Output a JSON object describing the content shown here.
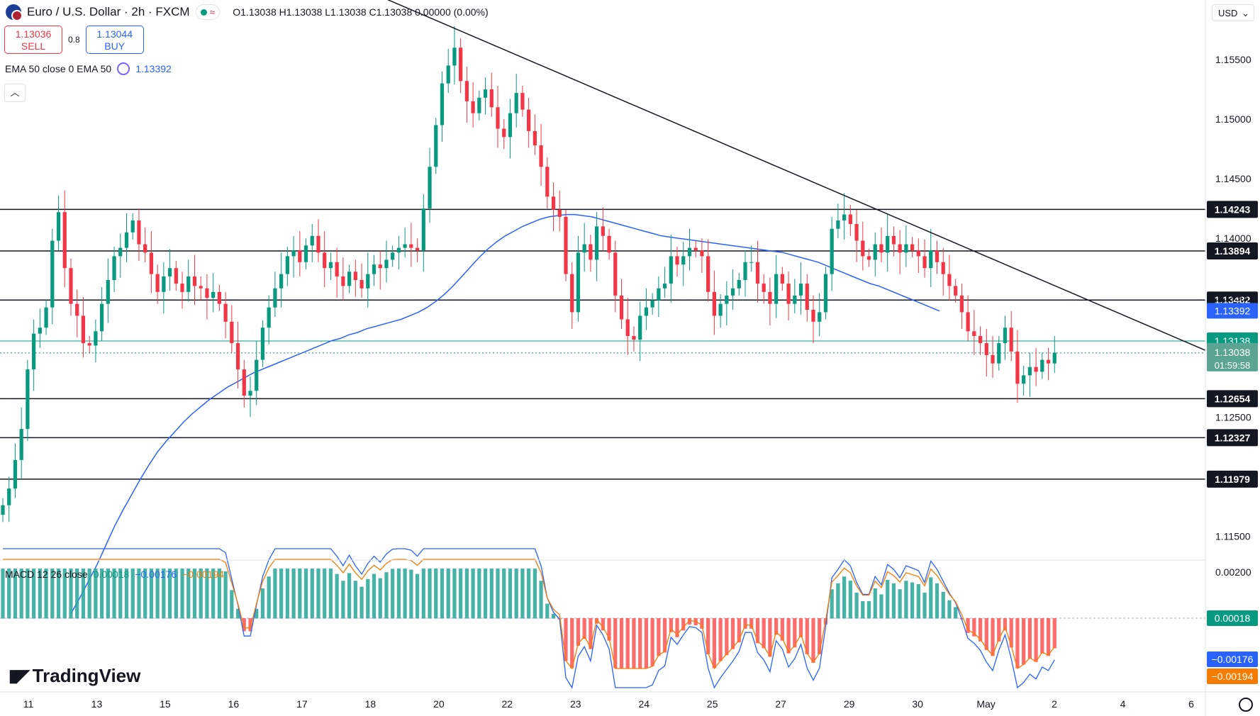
{
  "header": {
    "symbol_title": "Euro / U.S. Dollar · 2h · FXCM",
    "ohlc": "O1.13038 H1.13038 L1.13038 C1.13038 0.00000 (0.00%)"
  },
  "trade": {
    "sell_price": "1.13036",
    "sell_label": "SELL",
    "spread": "0.8",
    "buy_price": "1.13044",
    "buy_label": "BUY"
  },
  "ema_legend": {
    "label": "EMA 50 close 0 EMA 50",
    "value": "1.13392"
  },
  "macd_legend": {
    "label": "MACD 12 26 close",
    "v1": "0.00018",
    "v2": "−0.00176",
    "v3": "−0.00194"
  },
  "brand": {
    "name": "TradingView"
  },
  "currency": "USD",
  "colors": {
    "up": "#089981",
    "down": "#f23645",
    "ema": "#2962ff",
    "signal": "#f57c00",
    "trend": "#131722",
    "current": "#089981"
  },
  "chart_data": {
    "type": "candlestick",
    "price_axis": {
      "ylim": [
        1.113,
        1.16
      ],
      "ticks": [
        "1.15500",
        "1.15000",
        "1.14500",
        "1.14000",
        "1.13500",
        "1.12500",
        "1.11500"
      ]
    },
    "x_axis": {
      "labels": [
        "11",
        "13",
        "15",
        "16",
        "17",
        "18",
        "20",
        "22",
        "23",
        "24",
        "25",
        "27",
        "29",
        "30",
        "May",
        "2",
        "4",
        "6"
      ]
    },
    "horizontal_levels": [
      "1.14243",
      "1.13894",
      "1.13482",
      "1.12654",
      "1.12327",
      "1.11979"
    ],
    "current_price": {
      "value": "1.13038",
      "countdown": "01:59:58"
    },
    "green_level": "1.13138",
    "ema_value": "1.13392",
    "trendline": {
      "from": {
        "x": 20.1,
        "y": 1.1602
      },
      "to": {
        "x": 6.0,
        "y": 1.1306
      }
    },
    "closes": [
      1.1176,
      1.119,
      1.1214,
      1.124,
      1.129,
      1.132,
      1.1325,
      1.1342,
      1.1398,
      1.1422,
      1.1375,
      1.1345,
      1.1335,
      1.1312,
      1.131,
      1.1322,
      1.1345,
      1.1365,
      1.1385,
      1.1392,
      1.1405,
      1.1415,
      1.1395,
      1.1388,
      1.137,
      1.1355,
      1.1368,
      1.1375,
      1.1362,
      1.1355,
      1.1368,
      1.136,
      1.1358,
      1.135,
      1.1355,
      1.1345,
      1.133,
      1.1312,
      1.129,
      1.1268,
      1.1272,
      1.1298,
      1.1325,
      1.1342,
      1.1358,
      1.137,
      1.1385,
      1.139,
      1.138,
      1.1394,
      1.1402,
      1.1388,
      1.1375,
      1.138,
      1.1368,
      1.136,
      1.1372,
      1.1365,
      1.1358,
      1.137,
      1.1378,
      1.1375,
      1.1382,
      1.1388,
      1.1392,
      1.1395,
      1.1392,
      1.139,
      1.1425,
      1.146,
      1.1495,
      1.153,
      1.1545,
      1.156,
      1.1532,
      1.1515,
      1.1505,
      1.1518,
      1.1525,
      1.151,
      1.1492,
      1.1485,
      1.1505,
      1.1522,
      1.1508,
      1.149,
      1.1478,
      1.146,
      1.1435,
      1.1424,
      1.1418,
      1.137,
      1.1338,
      1.1388,
      1.1395,
      1.1382,
      1.141,
      1.1402,
      1.1388,
      1.1352,
      1.1332,
      1.1318,
      1.1315,
      1.1335,
      1.1342,
      1.1348,
      1.1358,
      1.1362,
      1.1385,
      1.1378,
      1.1385,
      1.1392,
      1.139,
      1.1385,
      1.1355,
      1.1335,
      1.1345,
      1.1352,
      1.1358,
      1.1365,
      1.138,
      1.138,
      1.1362,
      1.1355,
      1.1345,
      1.137,
      1.1362,
      1.1345,
      1.1352,
      1.1362,
      1.134,
      1.133,
      1.1338,
      1.137,
      1.1408,
      1.1415,
      1.142,
      1.1412,
      1.1398,
      1.1385,
      1.1382,
      1.1395,
      1.1388,
      1.1402,
      1.1395,
      1.1388,
      1.1395,
      1.139,
      1.1385,
      1.1375,
      1.139,
      1.138,
      1.137,
      1.136,
      1.1352,
      1.1338,
      1.1322,
      1.1318,
      1.1312,
      1.1302,
      1.1295,
      1.1312,
      1.1325,
      1.1305,
      1.1278,
      1.1285,
      1.1292,
      1.1288,
      1.1298,
      1.1295,
      1.1304
    ],
    "ema": [
      1.1085,
      1.1098,
      1.1112,
      1.1126,
      1.1142,
      1.1158,
      1.1172,
      1.1185,
      1.1198,
      1.121,
      1.1221,
      1.123,
      1.1238,
      1.1246,
      1.1253,
      1.1259,
      1.1265,
      1.127,
      1.1275,
      1.1279,
      1.1283,
      1.1287,
      1.129,
      1.1293,
      1.1296,
      1.1299,
      1.1302,
      1.1305,
      1.1308,
      1.1311,
      1.1314,
      1.1316,
      1.1319,
      1.1321,
      1.1324,
      1.1326,
      1.1328,
      1.133,
      1.1332,
      1.1335,
      1.1338,
      1.1342,
      1.1347,
      1.1353,
      1.136,
      1.1368,
      1.1376,
      1.1384,
      1.1391,
      1.1397,
      1.1402,
      1.1406,
      1.141,
      1.1413,
      1.1416,
      1.1418,
      1.1419,
      1.142,
      1.142,
      1.1419,
      1.1418,
      1.1416,
      1.1414,
      1.1412,
      1.141,
      1.1408,
      1.1406,
      1.1404,
      1.1402,
      1.1401,
      1.14,
      1.1399,
      1.1398,
      1.1397,
      1.1396,
      1.1395,
      1.1394,
      1.1393,
      1.1392,
      1.1391,
      1.139,
      1.1389,
      1.1388,
      1.1386,
      1.1384,
      1.1382,
      1.138,
      1.1377,
      1.1374,
      1.1371,
      1.1368,
      1.1365,
      1.1362,
      1.136,
      1.1357,
      1.1354,
      1.1351,
      1.1348,
      1.1345,
      1.1342,
      1.1339
    ]
  }
}
